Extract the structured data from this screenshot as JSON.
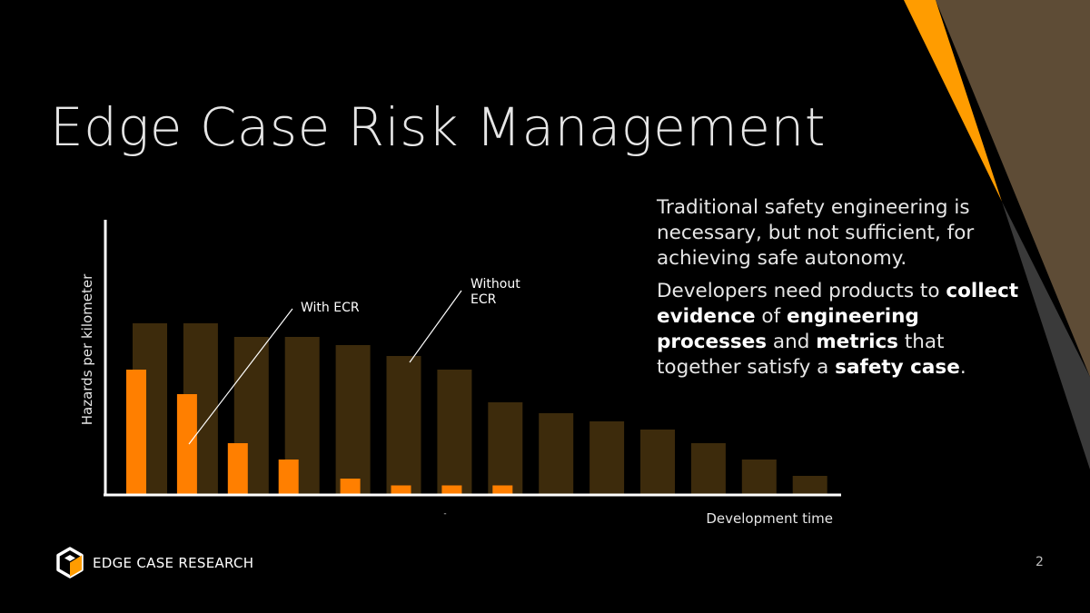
{
  "slide": {
    "title": "Edge Case Risk Management",
    "page_number": "2"
  },
  "side_text": {
    "p1": "Traditional safety engineering is necessary, but not sufficient, for achieving safe autonomy.",
    "p2": [
      {
        "text": "Developers need products to ",
        "bold": false
      },
      {
        "text": "collect evidence",
        "bold": true
      },
      {
        "text": " of ",
        "bold": false
      },
      {
        "text": "engineering processes",
        "bold": true
      },
      {
        "text": " and ",
        "bold": false
      },
      {
        "text": "metrics",
        "bold": true
      },
      {
        "text": " that together satisfy a ",
        "bold": false
      },
      {
        "text": "safety case",
        "bold": true
      },
      {
        "text": ".",
        "bold": false
      }
    ]
  },
  "logo": {
    "text": "EDGE CASE RESEARCH"
  },
  "colors": {
    "with_ecr": "#ff7f00",
    "without_ecr": "#3d2b0c",
    "accent_orange": "#ff9c00",
    "accent_brown": "#5e4c36",
    "accent_gray": "#3a3a3a"
  },
  "chart_data": {
    "type": "bar",
    "xlabel": "Development time",
    "ylabel": "Hazards per kilometer",
    "x_tick_label": "-",
    "ylim": [
      0,
      100
    ],
    "categories": [
      "",
      "",
      "",
      "",
      "",
      "",
      "",
      "",
      "",
      "",
      "",
      "",
      "",
      ""
    ],
    "series": [
      {
        "name": "Without ECR",
        "values": [
          63,
          63,
          58,
          58,
          55,
          51,
          46,
          34,
          30,
          27,
          24,
          19,
          13,
          7
        ]
      },
      {
        "name": "With ECR",
        "values": [
          46,
          37,
          19,
          13,
          6,
          3.5,
          3.5,
          3.5,
          null,
          null,
          null,
          null,
          null,
          null
        ]
      }
    ],
    "annotations": [
      {
        "text": "With ECR",
        "series": "With ECR",
        "category_index": 1
      },
      {
        "text_lines": [
          "Without",
          "ECR"
        ],
        "series": "Without ECR",
        "category_index": 5
      }
    ],
    "grid": false,
    "legend": "none"
  }
}
